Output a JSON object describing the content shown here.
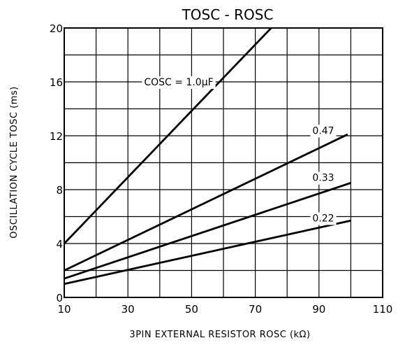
{
  "chart_data": {
    "type": "line",
    "title": "TOSC - ROSC",
    "xlabel": "3PIN EXTERNAL RESISTOR  ROSC  (kΩ)",
    "ylabel": "OSCILLATION CYCLE  TOSC  (ms)",
    "xlim": [
      10,
      110
    ],
    "ylim": [
      0,
      20
    ],
    "x_ticks": [
      "10",
      "30",
      "50",
      "70",
      "90",
      "110"
    ],
    "y_ticks": [
      "0",
      "4",
      "8",
      "12",
      "16",
      "20"
    ],
    "grid": true,
    "series": [
      {
        "name": "COSC = 1.0μF",
        "x": [
          10,
          75
        ],
        "y": [
          4,
          20
        ]
      },
      {
        "name": "0.47",
        "x": [
          10,
          99
        ],
        "y": [
          2,
          12.1
        ]
      },
      {
        "name": "0.33",
        "x": [
          10,
          100
        ],
        "y": [
          1.4,
          8.5
        ]
      },
      {
        "name": "0.22",
        "x": [
          10,
          100
        ],
        "y": [
          1,
          5.7
        ]
      }
    ]
  }
}
